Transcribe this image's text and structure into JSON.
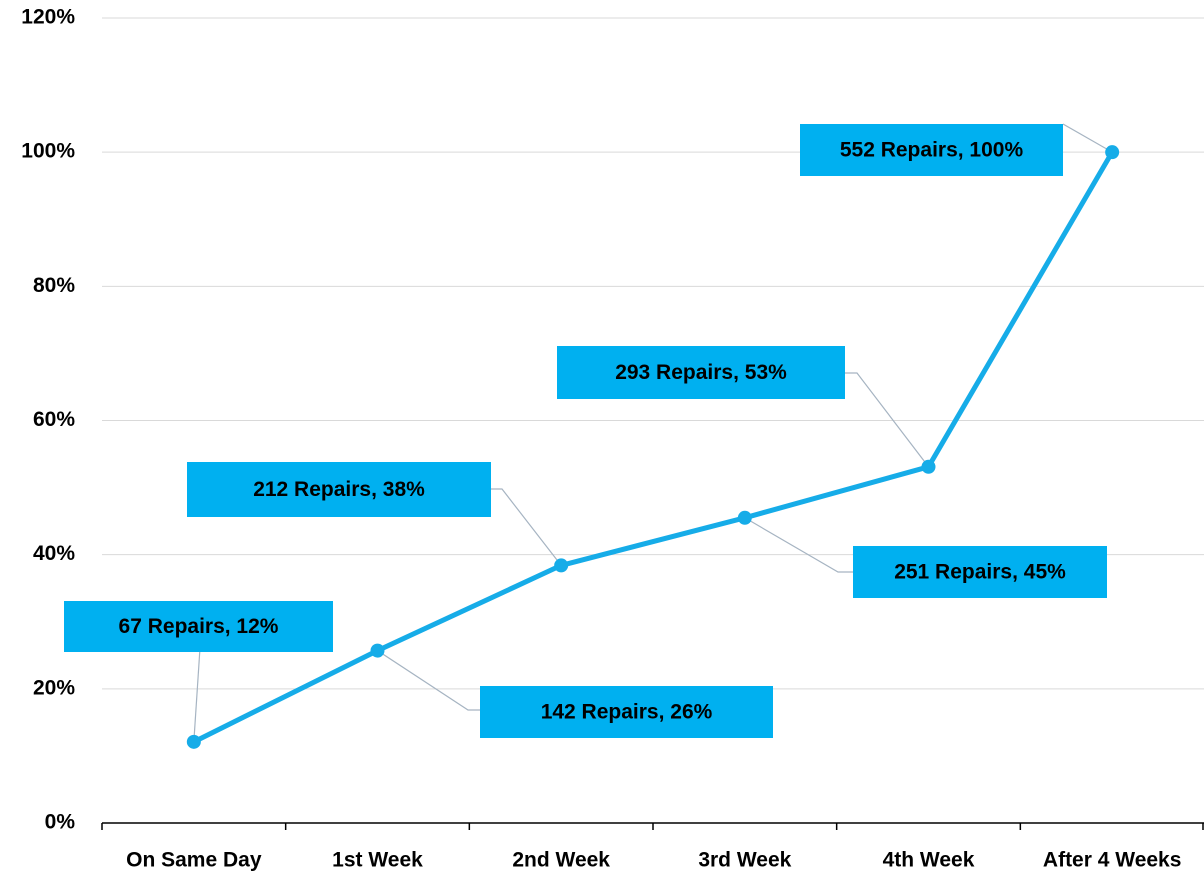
{
  "chart_data": {
    "type": "line",
    "categories": [
      "On Same Day",
      "1st Week",
      "2nd Week",
      "3rd Week",
      "4th Week",
      "After 4 Weeks"
    ],
    "values": [
      12.1,
      25.7,
      38.4,
      45.5,
      53.1,
      100
    ],
    "value_labels": [
      "67 Repairs, 12%",
      "142 Repairs, 26%",
      "212 Repairs, 38%",
      "251 Repairs, 45%",
      "293 Repairs, 53%",
      "552 Repairs, 100%"
    ],
    "color": "#16ace8",
    "label_color": "#00b0f0",
    "ylim": [
      0,
      120
    ],
    "yticks": [
      {
        "value": 0,
        "label": "0%"
      },
      {
        "value": 20,
        "label": "20%"
      },
      {
        "value": 40,
        "label": "40%"
      },
      {
        "value": 60,
        "label": "60%"
      },
      {
        "value": 80,
        "label": "80%"
      },
      {
        "value": 100,
        "label": "100%"
      },
      {
        "value": 120,
        "label": "120%"
      }
    ],
    "grid": true
  }
}
